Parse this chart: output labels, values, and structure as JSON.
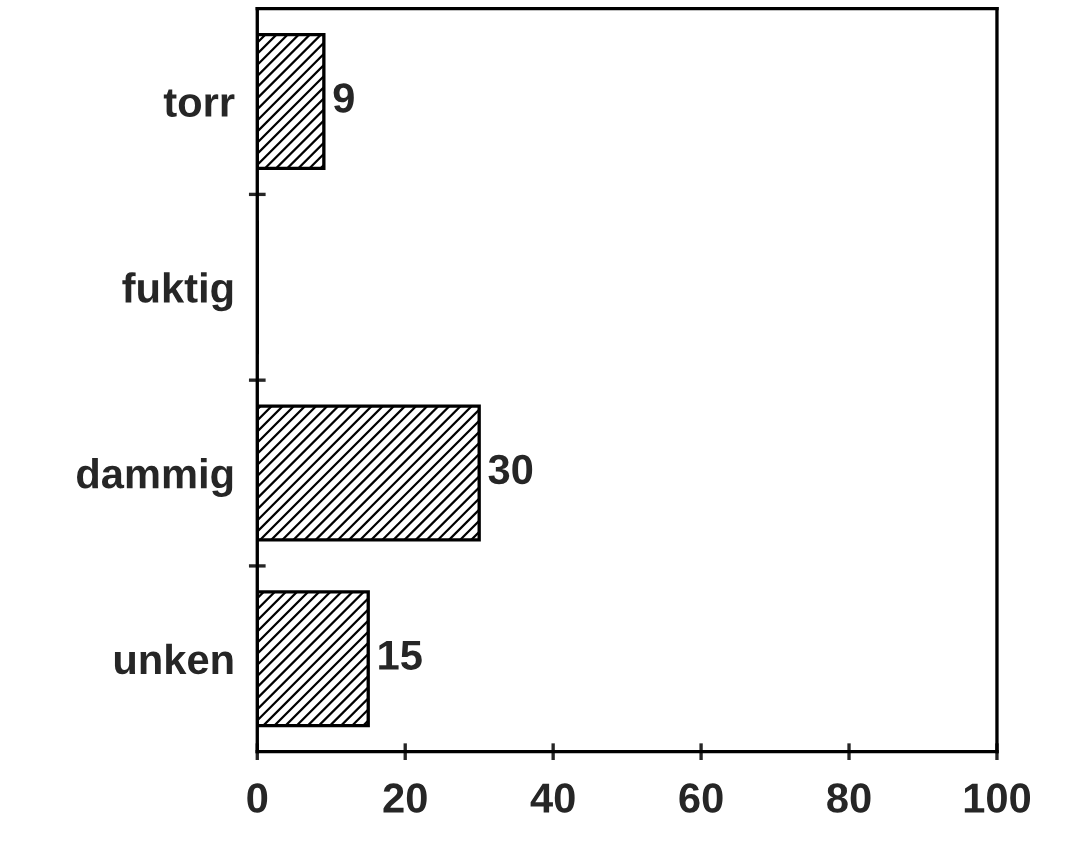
{
  "chart_data": {
    "type": "bar",
    "orientation": "horizontal",
    "categories": [
      "torr",
      "fuktig",
      "dammig",
      "unken"
    ],
    "values": [
      9,
      0,
      30,
      15
    ],
    "value_labels": [
      "9",
      null,
      "30",
      "15"
    ],
    "color": "#000000",
    "xlim": [
      0,
      100
    ],
    "xticks": [
      0,
      20,
      40,
      60,
      80,
      100
    ],
    "grid": false,
    "legend": false
  }
}
